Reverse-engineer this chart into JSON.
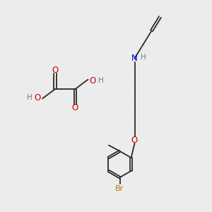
{
  "background_color": "#ececec",
  "bond_color": "#2a2a2a",
  "oxygen_color": "#cc0000",
  "nitrogen_color": "#0000cc",
  "bromine_color": "#b87800",
  "hydrogen_color": "#4a8a8a",
  "figsize": [
    3.0,
    3.0
  ],
  "dpi": 100,
  "xlim": [
    0,
    10
  ],
  "ylim": [
    0,
    10
  ]
}
